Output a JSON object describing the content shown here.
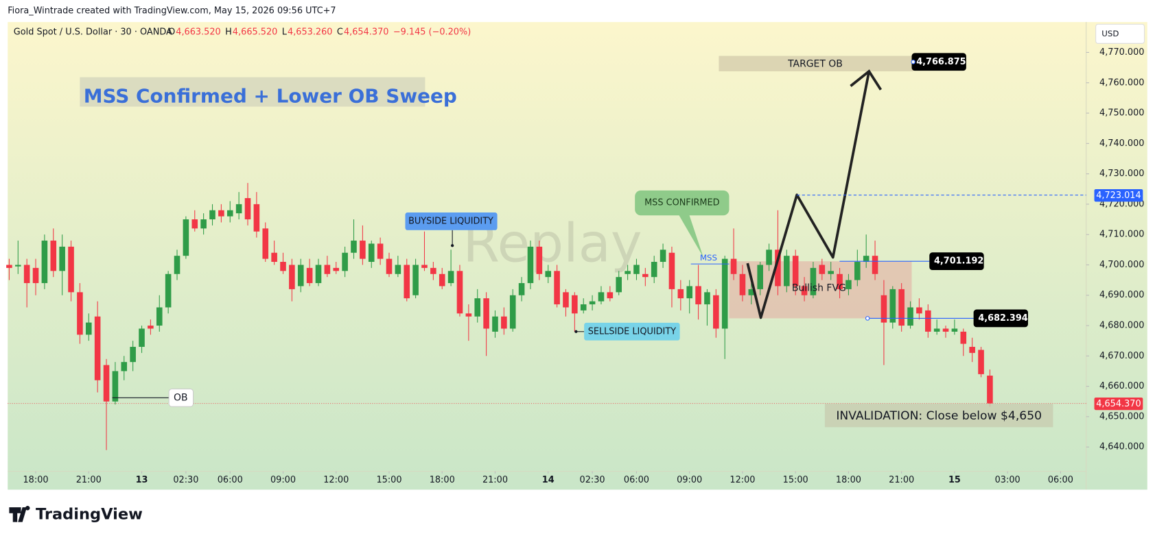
{
  "header": {
    "credit": "Fiora_Wintrade created with TradingView.com, May 15, 2026 09:56 UTC+7",
    "logo": "TradingView"
  },
  "chart_data": {
    "type": "candlestick",
    "symbol": "Gold Spot / U.S. Dollar · 30 · OANDA",
    "legend": [
      {
        "key": "O",
        "text": "4,663.520"
      },
      {
        "key": "H",
        "text": "4,665.520"
      },
      {
        "key": "L",
        "text": "4,653.260"
      },
      {
        "key": "C",
        "text": "4,654.370"
      }
    ],
    "change": "−9.145 (−0.20%)",
    "currency": "USD",
    "title": "MSS Confirmed + Lower OB Sweep",
    "watermark": "Replay",
    "up_color": "#2f9c48",
    "down_color": "#f23645",
    "grid": false,
    "xlim": [
      -0.17,
      121.9
    ],
    "ylim": [
      4632,
      4780
    ],
    "xticks": [
      {
        "value": 3,
        "label": "18:00"
      },
      {
        "value": 9,
        "label": "21:00"
      },
      {
        "value": 15,
        "label": "13"
      },
      {
        "value": 20,
        "label": "02:30"
      },
      {
        "value": 25,
        "label": "06:00"
      },
      {
        "value": 31,
        "label": "09:00"
      },
      {
        "value": 37,
        "label": "12:00"
      },
      {
        "value": 43,
        "label": "15:00"
      },
      {
        "value": 49,
        "label": "18:00"
      },
      {
        "value": 55,
        "label": "21:00"
      },
      {
        "value": 61,
        "label": "14"
      },
      {
        "value": 66,
        "label": "02:30"
      },
      {
        "value": 71,
        "label": "06:00"
      },
      {
        "value": 77,
        "label": "09:00"
      },
      {
        "value": 83,
        "label": "12:00"
      },
      {
        "value": 89,
        "label": "15:00"
      },
      {
        "value": 95,
        "label": "18:00"
      },
      {
        "value": 101,
        "label": "21:00"
      },
      {
        "value": 107,
        "label": "15"
      },
      {
        "value": 113,
        "label": "03:00"
      },
      {
        "value": 119,
        "label": "06:00"
      }
    ],
    "yticks": [
      {
        "value": 4640,
        "label": "4,640.000"
      },
      {
        "value": 4650,
        "label": "4,650.000"
      },
      {
        "value": 4660,
        "label": "4,660.000"
      },
      {
        "value": 4670,
        "label": "4,670.000"
      },
      {
        "value": 4680,
        "label": "4,680.000"
      },
      {
        "value": 4690,
        "label": "4,690.000"
      },
      {
        "value": 4700,
        "label": "4,700.000"
      },
      {
        "value": 4710,
        "label": "4,710.000"
      },
      {
        "value": 4720,
        "label": "4,720.000"
      },
      {
        "value": 4730,
        "label": "4,730.000"
      },
      {
        "value": 4740,
        "label": "4,740.000"
      },
      {
        "value": 4750,
        "label": "4,750.000"
      },
      {
        "value": 4760,
        "label": "4,760.000"
      },
      {
        "value": 4770,
        "label": "4,770.000"
      }
    ],
    "ohlc": [
      [
        4700,
        4702,
        4695,
        4699
      ],
      [
        4699.5,
        4708,
        4697,
        4700
      ],
      [
        4700,
        4702,
        4686,
        4694
      ],
      [
        4699,
        4702,
        4690,
        4694
      ],
      [
        4694,
        4710,
        4692,
        4708
      ],
      [
        4708,
        4712,
        4696,
        4698
      ],
      [
        4698,
        4710,
        4690,
        4706
      ],
      [
        4706,
        4708,
        4688,
        4691
      ],
      [
        4691,
        4694,
        4674,
        4677
      ],
      [
        4677,
        4684,
        4675,
        4681
      ],
      [
        4683,
        4688,
        4658,
        4662
      ],
      [
        4667,
        4669,
        4639,
        4655
      ],
      [
        4655,
        4668,
        4654,
        4665
      ],
      [
        4665,
        4670,
        4662,
        4668
      ],
      [
        4668,
        4675,
        4665,
        4673
      ],
      [
        4673,
        4680,
        4671,
        4679
      ],
      [
        4680,
        4682,
        4677,
        4679
      ],
      [
        4680,
        4690,
        4678,
        4686
      ],
      [
        4686,
        4698,
        4684,
        4697
      ],
      [
        4697,
        4705,
        4695,
        4703
      ],
      [
        4703,
        4716,
        4702,
        4715
      ],
      [
        4715,
        4718,
        4711,
        4712
      ],
      [
        4712,
        4717,
        4710,
        4715
      ],
      [
        4715,
        4720,
        4713,
        4718
      ],
      [
        4718,
        4720,
        4714,
        4716
      ],
      [
        4716,
        4721,
        4714,
        4718
      ],
      [
        4717,
        4724,
        4715,
        4720
      ],
      [
        4722,
        4727,
        4713,
        4715
      ],
      [
        4720,
        4724,
        4709,
        4711
      ],
      [
        4712,
        4714,
        4701,
        4702
      ],
      [
        4704,
        4708,
        4700,
        4701
      ],
      [
        4701,
        4704,
        4697,
        4698
      ],
      [
        4700,
        4702,
        4688,
        4692
      ],
      [
        4693,
        4702,
        4691,
        4700
      ],
      [
        4699,
        4702,
        4693,
        4694
      ],
      [
        4694,
        4702,
        4693,
        4700
      ],
      [
        4700,
        4703,
        4696,
        4697
      ],
      [
        4699,
        4701,
        4697,
        4698
      ],
      [
        4698,
        4706,
        4696,
        4704
      ],
      [
        4704,
        4715,
        4702,
        4708
      ],
      [
        4708,
        4713,
        4700,
        4702
      ],
      [
        4701,
        4708,
        4699,
        4707
      ],
      [
        4707,
        4709,
        4700,
        4702
      ],
      [
        4702,
        4704,
        4696,
        4697
      ],
      [
        4697,
        4703,
        4696,
        4700
      ],
      [
        4700,
        4702,
        4688,
        4689
      ],
      [
        4690,
        4702,
        4689,
        4700
      ],
      [
        4700,
        4711,
        4698,
        4699
      ],
      [
        4699,
        4701,
        4695,
        4697
      ],
      [
        4697,
        4699,
        4692,
        4693
      ],
      [
        4694,
        4705,
        4693,
        4698
      ],
      [
        4698,
        4700,
        4683,
        4684
      ],
      [
        4684,
        4687,
        4675,
        4683
      ],
      [
        4683,
        4692,
        4681,
        4689
      ],
      [
        4689,
        4691,
        4670,
        4679
      ],
      [
        4678,
        4685,
        4676,
        4683
      ],
      [
        4683,
        4686,
        4677,
        4679
      ],
      [
        4679,
        4692,
        4678,
        4690
      ],
      [
        4690,
        4696,
        4688,
        4694
      ],
      [
        4694,
        4708,
        4692,
        4706
      ],
      [
        4706,
        4708,
        4695,
        4697
      ],
      [
        4696,
        4700,
        4694,
        4698
      ],
      [
        4698,
        4700,
        4686,
        4687
      ],
      [
        4691,
        4692,
        4683,
        4686
      ],
      [
        4690,
        4691,
        4678,
        4684
      ],
      [
        4685,
        4689,
        4684,
        4687
      ],
      [
        4687,
        4690,
        4685,
        4688
      ],
      [
        4688,
        4693,
        4687,
        4691
      ],
      [
        4691,
        4693,
        4688,
        4689
      ],
      [
        4691,
        4698,
        4690,
        4696
      ],
      [
        4697,
        4700,
        4695,
        4698
      ],
      [
        4697,
        4702,
        4695,
        4700
      ],
      [
        4697,
        4699,
        4693,
        4696
      ],
      [
        4696,
        4703,
        4694,
        4701
      ],
      [
        4701,
        4707,
        4699,
        4705
      ],
      [
        4704,
        4706,
        4686,
        4692
      ],
      [
        4692,
        4695,
        4685,
        4689
      ],
      [
        4689,
        4695,
        4684,
        4693
      ],
      [
        4693,
        4700,
        4682,
        4687
      ],
      [
        4687,
        4692,
        4680,
        4691
      ],
      [
        4690,
        4692,
        4676,
        4679
      ],
      [
        4679,
        4703,
        4669,
        4702
      ],
      [
        4702,
        4712,
        4695,
        4697
      ],
      [
        4697,
        4700,
        4688,
        4690
      ],
      [
        4690,
        4694,
        4687,
        4692
      ],
      [
        4692,
        4701,
        4690,
        4700
      ],
      [
        4700,
        4707,
        4698,
        4705
      ],
      [
        4705,
        4718,
        4690,
        4693
      ],
      [
        4693,
        4705,
        4691,
        4703
      ],
      [
        4703,
        4705,
        4690,
        4693
      ],
      [
        4693,
        4696,
        4688,
        4690
      ],
      [
        4690,
        4701,
        4689,
        4699
      ],
      [
        4700,
        4702,
        4695,
        4697
      ],
      [
        4697,
        4701,
        4695,
        4698
      ],
      [
        4697,
        4699,
        4689,
        4692
      ],
      [
        4692,
        4697,
        4690,
        4695
      ],
      [
        4695,
        4705,
        4693,
        4701
      ],
      [
        4701,
        4710,
        4699,
        4703
      ],
      [
        4703,
        4708,
        4695,
        4697
      ],
      [
        4690,
        4695,
        4667,
        4681
      ],
      [
        4681,
        4693,
        4679,
        4692
      ],
      [
        4692,
        4694,
        4678,
        4680
      ],
      [
        4680,
        4688,
        4679,
        4686
      ],
      [
        4686,
        4689,
        4682,
        4684
      ],
      [
        4685,
        4687,
        4676,
        4678
      ],
      [
        4678,
        4682,
        4677,
        4679
      ],
      [
        4679,
        4680,
        4676,
        4678
      ],
      [
        4678,
        4682,
        4677,
        4679
      ],
      [
        4678,
        4679,
        4670,
        4674
      ],
      [
        4673,
        4676,
        4668,
        4671
      ],
      [
        4672,
        4673,
        4663,
        4664
      ],
      [
        4663.52,
        4665.52,
        4653.26,
        4654.37
      ]
    ],
    "price_labels": [
      {
        "value": 4766.875,
        "label": "4,766.875"
      },
      {
        "value": 4723.014,
        "label": "4,723.014"
      },
      {
        "value": 4701.192,
        "label": "4,701.192"
      },
      {
        "value": 4682.394,
        "label": "4,682.394"
      },
      {
        "value": 4654.37,
        "label": "4,654.370"
      }
    ],
    "annotations": {
      "target": "TARGET OB",
      "mss_confirmed": "MSS CONFIRMED",
      "mss": "MSS",
      "buyside": "BUYSIDE LIQUIDITY",
      "sellside": "SELLSIDE LIQUIDITY",
      "ob": "OB",
      "fvg": "Bullish FVG",
      "invalidation": "INVALIDATION: Close below $4,650"
    }
  }
}
